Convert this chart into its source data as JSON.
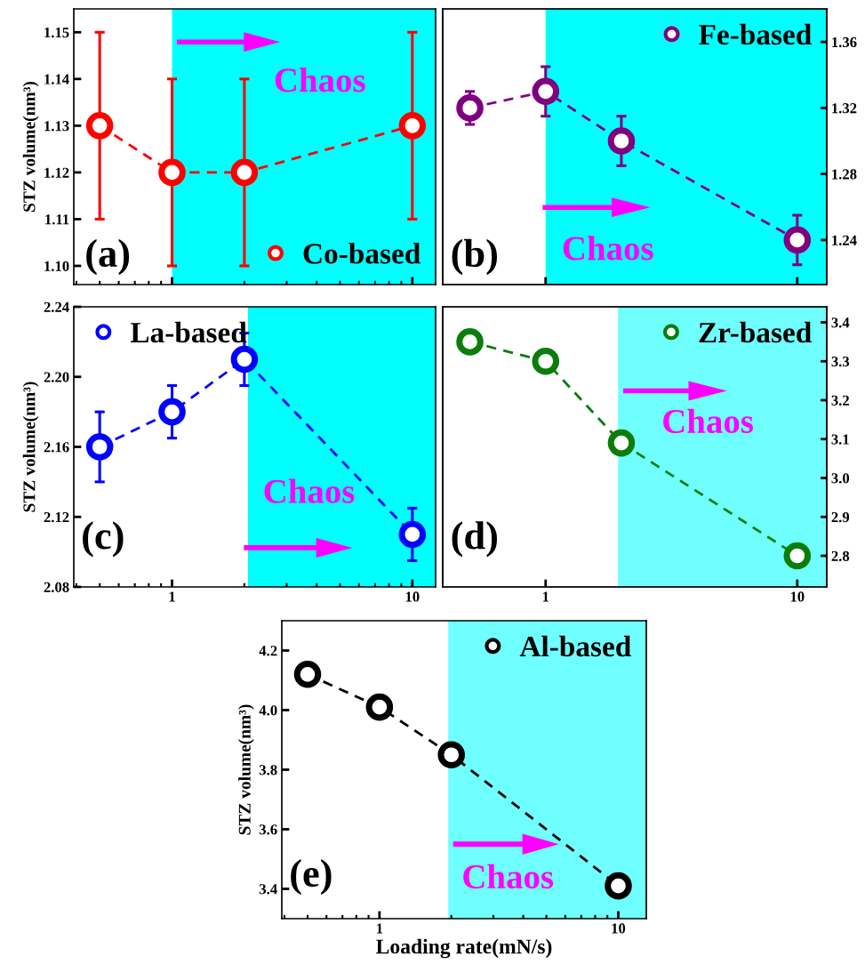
{
  "chart_data": [
    {
      "type": "line",
      "ylabel": "STZ volume(nm³)",
      "x": [
        0.5,
        1,
        2,
        10
      ],
      "log": "x",
      "xlim": [
        0.39,
        12.5
      ],
      "xticks": [
        1,
        10
      ],
      "ylim": [
        1.096,
        1.155
      ],
      "yticks": [
        {
          "value": 1.1,
          "label": "1.10"
        },
        1.11,
        1.12,
        1.13,
        1.14,
        1.15
      ],
      "tick_labels": "y",
      "marker": "circle",
      "line_style": "dashed",
      "legend": "bottom right",
      "grid": false,
      "series": [
        {
          "name": "Co-based",
          "color": "#ff0000",
          "values": [
            1.13,
            1.12,
            1.12,
            1.13
          ],
          "errors": [
            0.02,
            0.02,
            0.02,
            0.02
          ]
        }
      ],
      "bands": [
        {
          "axis": "x",
          "from": 1,
          "to": 12.5,
          "color": "#00ffff"
        }
      ],
      "annotations": [
        "(a)",
        "Chaos"
      ]
    },
    {
      "type": "line",
      "x": [
        0.5,
        1,
        2,
        10
      ],
      "log": "x",
      "xlim": [
        0.39,
        13.1
      ],
      "xticks": [
        1,
        10
      ],
      "y2lim": [
        1.213,
        1.38
      ],
      "y2ticks": [
        1.24,
        1.28,
        1.32,
        1.36
      ],
      "tick_labels": "y",
      "marker": "circle",
      "line_style": "dashed",
      "legend": "top right",
      "grid": false,
      "series": [
        {
          "name": "Fe-based",
          "color": "#800080",
          "axis": "y2",
          "values": [
            1.32,
            1.33,
            1.3,
            1.24
          ],
          "errors": [
            0.01,
            0.015,
            0.015,
            0.015
          ]
        }
      ],
      "bands": [
        {
          "axis": "x",
          "from": 1,
          "to": 13.1,
          "color": "#00ffff"
        }
      ],
      "annotations": [
        "(b)",
        "Chaos"
      ]
    },
    {
      "type": "line",
      "ylabel": "STZ volume(nm³)",
      "x": [
        0.5,
        1,
        2,
        10
      ],
      "log": "x",
      "xlim": [
        0.39,
        12.5
      ],
      "xticks": [
        1,
        10
      ],
      "ylim": [
        2.08,
        2.24
      ],
      "yticks": [
        2.08,
        2.12,
        2.16,
        {
          "value": 2.2,
          "label": "2.20"
        },
        2.24
      ],
      "marker": "circle",
      "line_style": "dashed",
      "legend": "top left",
      "grid": false,
      "series": [
        {
          "name": "La-based",
          "color": "#0000ff",
          "values": [
            2.16,
            2.18,
            2.21,
            2.11
          ],
          "errors": [
            0.02,
            0.015,
            0.015,
            0.015
          ]
        }
      ],
      "bands": [
        {
          "axis": "x",
          "from": 2.07,
          "to": 12.5,
          "color": "#00ffff"
        }
      ],
      "annotations": [
        "(c)",
        "Chaos"
      ]
    },
    {
      "type": "line",
      "x": [
        0.5,
        1,
        2,
        10
      ],
      "log": "x",
      "xlim": [
        0.39,
        13.1
      ],
      "xticks": [
        1,
        10
      ],
      "y2lim": [
        2.72,
        3.44
      ],
      "y2ticks": [
        2.8,
        2.9,
        {
          "value": 3,
          "label": "3.0"
        },
        3.1,
        3.2,
        3.3,
        3.4
      ],
      "marker": "circle",
      "line_style": "dashed",
      "legend": "top right",
      "grid": false,
      "series": [
        {
          "name": "Zr-based",
          "color": "#0a7d0a",
          "axis": "y2",
          "values": [
            3.35,
            3.3,
            3.09,
            2.8
          ]
        }
      ],
      "bands": [
        {
          "axis": "x",
          "from": 1.94,
          "to": 13.1,
          "color": "#70ffff"
        }
      ],
      "annotations": [
        "(d)",
        "Chaos"
      ]
    },
    {
      "type": "line",
      "ylabel": "STZ volume(nm³)",
      "xlabel": "Loading rate(mN/s)",
      "x": [
        0.5,
        1,
        2,
        10
      ],
      "log": "x",
      "xlim": [
        0.39,
        13.1
      ],
      "xticks": [
        1,
        10
      ],
      "ylim": [
        3.3,
        4.3
      ],
      "yticks": [
        3.4,
        3.6,
        3.8,
        {
          "value": 4,
          "label": "4.0"
        },
        4.2
      ],
      "marker": "circle",
      "line_style": "dashed",
      "legend": "top right",
      "grid": false,
      "series": [
        {
          "name": "Al-based",
          "color": "#000000",
          "values": [
            4.12,
            4.01,
            3.85,
            3.41
          ]
        }
      ],
      "bands": [
        {
          "axis": "x",
          "from": 1.94,
          "to": 13.1,
          "color": "#70ffff"
        }
      ],
      "annotations": [
        "(e)",
        "Chaos"
      ]
    }
  ]
}
